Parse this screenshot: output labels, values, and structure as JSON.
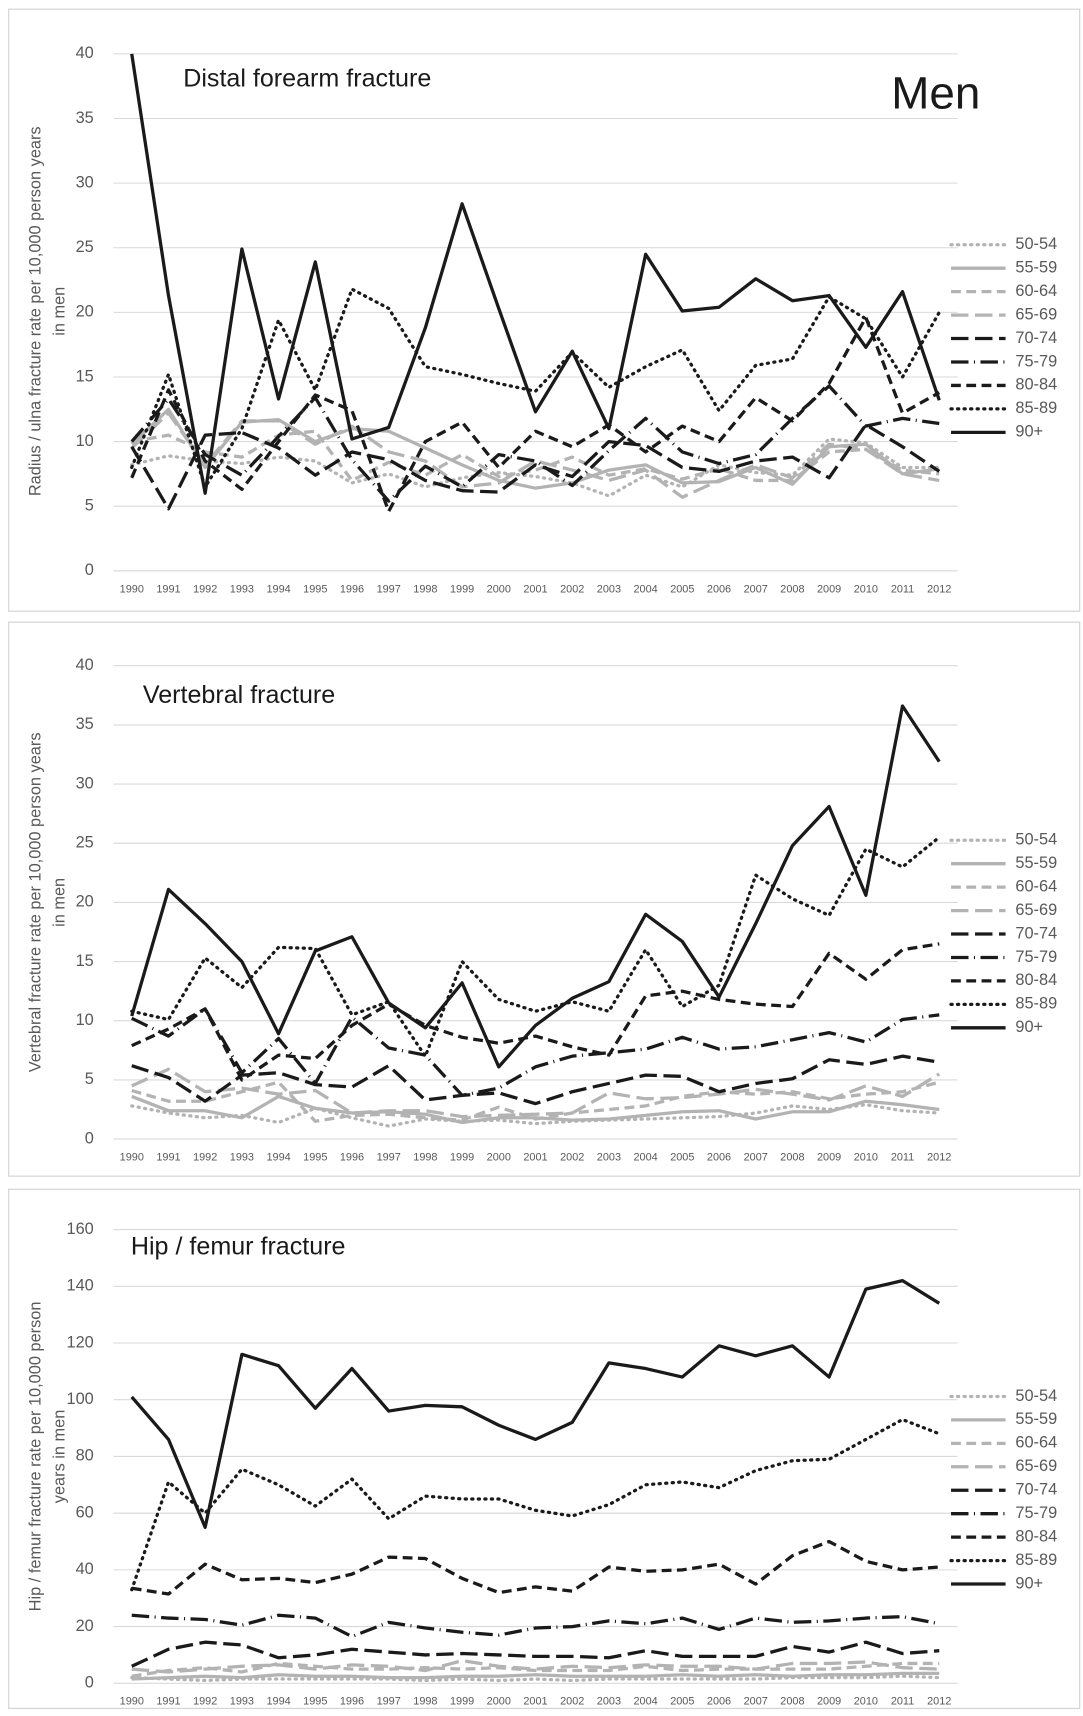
{
  "chart_data": [
    {
      "type": "line",
      "title": "Distal forearm fracture",
      "annotation": "Men",
      "ylabel": [
        "Radius / ulna fracture rate per 10,000 person years",
        "in men"
      ],
      "categories": [
        "1990",
        "1991",
        "1992",
        "1993",
        "1994",
        "1995",
        "1996",
        "1997",
        "1998",
        "1999",
        "2000",
        "2001",
        "2002",
        "2003",
        "2004",
        "2005",
        "2006",
        "2007",
        "2008",
        "2009",
        "2010",
        "2011",
        "2012"
      ],
      "ylim": [
        0,
        40
      ],
      "yticks": [
        0,
        5,
        10,
        15,
        20,
        25,
        30,
        35,
        40
      ],
      "grid": true,
      "legend": "right",
      "series": [
        {
          "name": "50-54",
          "color": "#b3b3b3",
          "dash": "dotted",
          "values": [
            8.2,
            8.9,
            8.5,
            8.3,
            8.8,
            8.5,
            6.8,
            7.5,
            6.5,
            7.2,
            7.6,
            7.3,
            6.8,
            5.8,
            7.4,
            6.5,
            8.2,
            7.6,
            7.4,
            10.2,
            9.9,
            8,
            8
          ]
        },
        {
          "name": "55-59",
          "color": "#b3b3b3",
          "dash": "solid",
          "values": [
            9.8,
            12.5,
            8,
            11.5,
            11.7,
            10,
            11,
            10.8,
            9.5,
            8.2,
            7,
            6.4,
            6.8,
            7.8,
            8.2,
            6.8,
            6.9,
            8,
            6.7,
            9.6,
            9.8,
            7.5,
            7.9
          ]
        },
        {
          "name": "60-64",
          "color": "#b3b3b3",
          "dash": "dashed",
          "values": [
            10,
            10.5,
            9.2,
            8.8,
            10.5,
            10.8,
            7,
            8.4,
            7.4,
            9,
            7.3,
            7.8,
            8.8,
            7.4,
            7.9,
            7.1,
            7.9,
            7,
            7,
            9.2,
            9.4,
            7.8,
            7.5
          ]
        },
        {
          "name": "65-69",
          "color": "#b3b3b3",
          "dash": "longdash",
          "values": [
            9.5,
            12.2,
            8.2,
            11.6,
            11.6,
            9.8,
            11.2,
            9.2,
            8.5,
            6.5,
            6.8,
            8.5,
            7.8,
            7,
            7.8,
            5.7,
            7,
            8.2,
            7.2,
            9.8,
            9.4,
            7.5,
            7
          ]
        },
        {
          "name": "70-74",
          "color": "#1a1a1a",
          "dash": "longdash",
          "values": [
            9.6,
            4.8,
            10.5,
            10.7,
            9.5,
            7.4,
            9.2,
            8.6,
            7,
            6.2,
            6.1,
            8.2,
            7.3,
            10,
            9.7,
            8,
            7.7,
            8.5,
            8.8,
            7.2,
            11.3,
            9.6,
            7.7
          ]
        },
        {
          "name": "75-79",
          "color": "#1a1a1a",
          "dash": "dashdot",
          "values": [
            10,
            13.3,
            9,
            7.4,
            10.4,
            13.4,
            8.6,
            5.4,
            8.1,
            6.5,
            9,
            8.5,
            6.6,
            9.3,
            11.8,
            9.2,
            8.3,
            9,
            11.8,
            14.3,
            11.2,
            11.8,
            11.4
          ]
        },
        {
          "name": "80-84",
          "color": "#1a1a1a",
          "dash": "dashed",
          "values": [
            7.2,
            14,
            8.5,
            6.3,
            10,
            13.6,
            12.4,
            4.6,
            10,
            11.5,
            8,
            10.8,
            9.6,
            11.3,
            9.2,
            11.2,
            10,
            13.4,
            11.6,
            14.5,
            19.6,
            12.2,
            13.8
          ]
        },
        {
          "name": "85-89",
          "color": "#1a1a1a",
          "dash": "dotted",
          "values": [
            8,
            15.2,
            6.5,
            11,
            19.4,
            14,
            21.8,
            20.3,
            15.8,
            15.2,
            14.5,
            13.9,
            16.9,
            14.2,
            15.8,
            17.1,
            12.4,
            15.9,
            16.4,
            21.2,
            19.5,
            15,
            20
          ]
        },
        {
          "name": "90+",
          "color": "#1a1a1a",
          "dash": "solid",
          "values": [
            40,
            21.3,
            6,
            24.9,
            13.3,
            23.9,
            10.2,
            11.1,
            18.8,
            28.4,
            20.3,
            12.3,
            17,
            11,
            24.5,
            20.1,
            20.4,
            22.6,
            20.9,
            21.3,
            17.3,
            21.6,
            13.2
          ]
        }
      ]
    },
    {
      "type": "line",
      "title": "Vertebral fracture",
      "ylabel": [
        "Vertebral fracture rate per 10,000 person years",
        "in men"
      ],
      "categories": [
        "1990",
        "1991",
        "1992",
        "1993",
        "1994",
        "1995",
        "1996",
        "1997",
        "1998",
        "1999",
        "2000",
        "2001",
        "2002",
        "2003",
        "2004",
        "2005",
        "2006",
        "2007",
        "2008",
        "2009",
        "2010",
        "2011",
        "2012"
      ],
      "ylim": [
        0,
        40
      ],
      "yticks": [
        0,
        5,
        10,
        15,
        20,
        25,
        30,
        35,
        40
      ],
      "grid": true,
      "legend": "right",
      "series": [
        {
          "name": "50-54",
          "color": "#b3b3b3",
          "dash": "dotted",
          "values": [
            2.8,
            2.2,
            1.8,
            2,
            1.4,
            2.6,
            1.8,
            1.1,
            1.7,
            1.5,
            1.6,
            1.3,
            1.5,
            1.6,
            1.7,
            1.8,
            1.9,
            2.2,
            2.8,
            2.5,
            2.9,
            2.4,
            2.2
          ]
        },
        {
          "name": "55-59",
          "color": "#b3b3b3",
          "dash": "solid",
          "values": [
            3.6,
            2.4,
            2.4,
            1.8,
            3.6,
            2.6,
            2.2,
            2.3,
            2.1,
            1.4,
            1.8,
            1.8,
            1.6,
            1.7,
            2,
            2.3,
            2.4,
            1.7,
            2.3,
            2.3,
            3.2,
            2.9,
            2.5
          ]
        },
        {
          "name": "60-64",
          "color": "#b3b3b3",
          "dash": "dashed",
          "values": [
            4.1,
            3.2,
            3.2,
            4,
            4.8,
            1.5,
            2,
            2.1,
            1.8,
            1.6,
            2.7,
            1.7,
            2.2,
            2.5,
            2.8,
            3.6,
            4,
            3.8,
            4,
            3.4,
            3.8,
            4,
            4.8
          ]
        },
        {
          "name": "65-69",
          "color": "#b3b3b3",
          "dash": "longdash",
          "values": [
            4.5,
            5.9,
            4,
            4.3,
            3.8,
            4.1,
            2.2,
            2.4,
            2.4,
            1.9,
            2,
            2.1,
            2.2,
            3.9,
            3.4,
            3.5,
            3.8,
            4.2,
            3.8,
            3.3,
            4.5,
            3.6,
            5.5
          ]
        },
        {
          "name": "70-74",
          "color": "#1a1a1a",
          "dash": "longdash",
          "values": [
            6.2,
            5.2,
            3.2,
            5.4,
            5.6,
            4.6,
            4.4,
            6.2,
            3.3,
            3.7,
            3.9,
            3,
            4,
            4.7,
            5.4,
            5.3,
            4,
            4.7,
            5.1,
            6.7,
            6.3,
            7,
            6.5
          ]
        },
        {
          "name": "75-79",
          "color": "#1a1a1a",
          "dash": "dashdot",
          "values": [
            10.2,
            8.7,
            11,
            5.6,
            8.5,
            4.7,
            10.3,
            7.7,
            7.1,
            3.7,
            4.3,
            6.1,
            7,
            7.3,
            7.6,
            8.6,
            7.6,
            7.8,
            8.4,
            9,
            8.2,
            10.1,
            10.5
          ]
        },
        {
          "name": "80-84",
          "color": "#1a1a1a",
          "dash": "dashed",
          "values": [
            7.9,
            9.3,
            11,
            5,
            7.1,
            6.8,
            9.6,
            11.4,
            9.6,
            8.6,
            8.1,
            8.7,
            7.8,
            7.1,
            12.1,
            12.5,
            11.8,
            11.4,
            11.2,
            15.7,
            13.5,
            16,
            16.5
          ]
        },
        {
          "name": "85-89",
          "color": "#1a1a1a",
          "dash": "dotted",
          "values": [
            10.8,
            10.1,
            15.3,
            12.8,
            16.2,
            16.1,
            10.5,
            11.6,
            7,
            15,
            11.8,
            10.8,
            11.6,
            10.8,
            16,
            11.2,
            13,
            22.3,
            20.3,
            18.9,
            24.5,
            23,
            25.5
          ]
        },
        {
          "name": "90+",
          "color": "#1a1a1a",
          "dash": "solid",
          "values": [
            10.4,
            21.1,
            18.2,
            15,
            8.9,
            15.9,
            17.1,
            11.5,
            9.4,
            13.2,
            6.1,
            9.6,
            11.9,
            13.3,
            19,
            16.7,
            12,
            18.2,
            24.8,
            28.1,
            20.6,
            36.6,
            31.9
          ]
        }
      ]
    },
    {
      "type": "line",
      "title": "Hip / femur fracture",
      "ylabel": [
        "Hip / femur fracture rate per 10,000 person",
        "years in men"
      ],
      "categories": [
        "1990",
        "1991",
        "1992",
        "1993",
        "1994",
        "1995",
        "1996",
        "1997",
        "1998",
        "1999",
        "2000",
        "2001",
        "2002",
        "2003",
        "2004",
        "2005",
        "2006",
        "2007",
        "2008",
        "2009",
        "2010",
        "2011",
        "2012"
      ],
      "ylim": [
        0,
        160
      ],
      "yticks": [
        0,
        20,
        40,
        60,
        80,
        100,
        120,
        140,
        160
      ],
      "grid": true,
      "legend": "right",
      "series": [
        {
          "name": "50-54",
          "color": "#b3b3b3",
          "dash": "dotted",
          "values": [
            2,
            1.5,
            1,
            1.5,
            1.5,
            1.5,
            1.5,
            1.5,
            1,
            1.5,
            1,
            1.5,
            1,
            1.5,
            1.5,
            1.5,
            1.5,
            1.5,
            2,
            2,
            2,
            2.5,
            2
          ]
        },
        {
          "name": "55-59",
          "color": "#b3b3b3",
          "dash": "solid",
          "values": [
            1.5,
            2,
            2.5,
            2,
            3,
            2.5,
            2.5,
            2,
            2,
            2.5,
            2.5,
            3,
            2.5,
            2.5,
            2.5,
            3,
            2.5,
            3,
            2.5,
            3,
            3,
            3.5,
            3.5
          ]
        },
        {
          "name": "60-64",
          "color": "#b3b3b3",
          "dash": "dashed",
          "values": [
            2.5,
            4.5,
            5.5,
            4,
            7,
            6,
            5,
            5,
            5.5,
            5,
            5.5,
            4.5,
            4.5,
            4.5,
            6,
            4.5,
            5,
            5,
            5,
            5,
            6,
            7,
            7
          ]
        },
        {
          "name": "65-69",
          "color": "#b3b3b3",
          "dash": "longdash",
          "values": [
            5,
            4,
            5,
            6,
            6.5,
            5,
            6.5,
            6,
            4.5,
            8,
            6,
            5,
            6,
            5.5,
            6.5,
            6,
            6,
            5,
            7,
            7,
            7.5,
            5.5,
            5
          ]
        },
        {
          "name": "70-74",
          "color": "#1a1a1a",
          "dash": "longdash",
          "values": [
            6,
            12,
            14.5,
            13.5,
            9,
            10,
            12,
            11,
            10,
            10.5,
            10,
            9.5,
            9.5,
            9,
            11.5,
            9.5,
            9.5,
            9.5,
            13,
            11,
            14.5,
            10.5,
            11.5
          ]
        },
        {
          "name": "75-79",
          "color": "#1a1a1a",
          "dash": "dashdot",
          "values": [
            24,
            23,
            22.5,
            20.5,
            24,
            23,
            16.5,
            21.5,
            19.5,
            18,
            17,
            19.5,
            20,
            22,
            21,
            23,
            19,
            23,
            21.5,
            22,
            23,
            23.5,
            21
          ]
        },
        {
          "name": "80-84",
          "color": "#1a1a1a",
          "dash": "dashed",
          "values": [
            33.5,
            31.5,
            42,
            36.5,
            37,
            35.5,
            38.5,
            44.5,
            44,
            37,
            32,
            34,
            32.5,
            41,
            39.5,
            40,
            42,
            35,
            45,
            50,
            43,
            40,
            41
          ]
        },
        {
          "name": "85-89",
          "color": "#1a1a1a",
          "dash": "dotted",
          "values": [
            33,
            71,
            60,
            75.5,
            70,
            62.5,
            72,
            58,
            66,
            65,
            65,
            61,
            59,
            63,
            70,
            71,
            69,
            75,
            78.5,
            79,
            86,
            93,
            88
          ]
        },
        {
          "name": "90+",
          "color": "#1a1a1a",
          "dash": "solid",
          "values": [
            101,
            86,
            55,
            116,
            112,
            97,
            111,
            96,
            98,
            97.5,
            91,
            86,
            92,
            113,
            111,
            108,
            119,
            115.5,
            119,
            108,
            139,
            142,
            134
          ]
        }
      ]
    }
  ]
}
